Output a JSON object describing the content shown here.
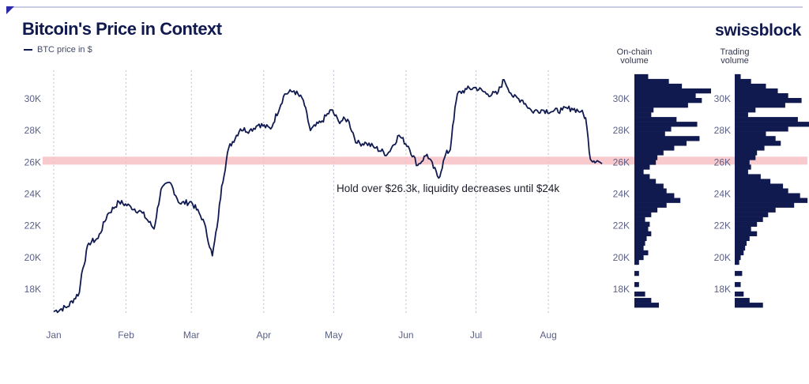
{
  "title": "Bitcoin's Price in Context",
  "brand": "swissblock",
  "legend_label": "BTC price in $",
  "colors": {
    "primary": "#101a4f",
    "band": "#f7c1c4",
    "grid": "#b9bccc"
  },
  "chart_data": {
    "type": "line",
    "series": [
      {
        "name": "BTC price in $",
        "x": [
          "2023-01-01",
          "2023-01-07",
          "2023-01-12",
          "2023-01-13",
          "2023-01-16",
          "2023-01-20",
          "2023-01-24",
          "2023-01-29",
          "2023-02-03",
          "2023-02-08",
          "2023-02-13",
          "2023-02-16",
          "2023-02-20",
          "2023-02-24",
          "2023-03-01",
          "2023-03-06",
          "2023-03-10",
          "2023-03-12",
          "2023-03-14",
          "2023-03-17",
          "2023-03-22",
          "2023-03-26",
          "2023-03-30",
          "2023-04-04",
          "2023-04-10",
          "2023-04-14",
          "2023-04-18",
          "2023-04-21",
          "2023-04-26",
          "2023-04-30",
          "2023-05-03",
          "2023-05-07",
          "2023-05-11",
          "2023-05-15",
          "2023-05-19",
          "2023-05-24",
          "2023-05-29",
          "2023-06-02",
          "2023-06-06",
          "2023-06-10",
          "2023-06-15",
          "2023-06-18",
          "2023-06-20",
          "2023-06-21",
          "2023-06-23",
          "2023-06-27",
          "2023-07-01",
          "2023-07-06",
          "2023-07-10",
          "2023-07-13",
          "2023-07-17",
          "2023-07-21",
          "2023-07-25",
          "2023-07-29",
          "2023-08-03",
          "2023-08-07",
          "2023-08-11",
          "2023-08-15",
          "2023-08-17",
          "2023-08-19",
          "2023-08-22",
          "2023-08-24"
        ],
        "y": [
          16600,
          16900,
          17800,
          19000,
          20900,
          21200,
          22700,
          23500,
          23200,
          22800,
          21800,
          24300,
          24700,
          23400,
          23500,
          22400,
          20100,
          21900,
          24500,
          26900,
          28100,
          28000,
          28400,
          28100,
          30300,
          30500,
          29900,
          28000,
          28600,
          29300,
          28600,
          28700,
          27200,
          27200,
          26900,
          26500,
          27700,
          27000,
          25800,
          26500,
          25000,
          26500,
          26800,
          28300,
          30300,
          30600,
          30700,
          30300,
          30300,
          31200,
          30100,
          29900,
          29200,
          29300,
          29200,
          29300,
          29400,
          29200,
          28800,
          26200,
          26100,
          25900
        ]
      }
    ],
    "xlabels": [
      "Jan",
      "Feb",
      "Mar",
      "Apr",
      "May",
      "Jun",
      "Jul",
      "Aug"
    ],
    "ylim": [
      16500,
      31800
    ],
    "yticks": [
      "18K",
      "20K",
      "22K",
      "24K",
      "26K",
      "28K",
      "30K"
    ],
    "ytick_values": [
      18000,
      20000,
      22000,
      24000,
      26000,
      28000,
      30000
    ],
    "highlight_band": [
      25850,
      26350
    ],
    "annotation": "Hold over $26.3k, liquidity decreases until $24k",
    "onchain_volume": {
      "title": [
        "On-chain",
        "volume"
      ],
      "bins": [
        {
          "price": 31400,
          "value": 0.18
        },
        {
          "price": 31100,
          "value": 0.45
        },
        {
          "price": 30800,
          "value": 0.62
        },
        {
          "price": 30500,
          "value": 1.0
        },
        {
          "price": 30200,
          "value": 0.8
        },
        {
          "price": 29900,
          "value": 0.88
        },
        {
          "price": 29600,
          "value": 0.7
        },
        {
          "price": 29300,
          "value": 0.25
        },
        {
          "price": 29000,
          "value": 0.22
        },
        {
          "price": 28700,
          "value": 0.55
        },
        {
          "price": 28400,
          "value": 0.82
        },
        {
          "price": 28100,
          "value": 0.48
        },
        {
          "price": 27800,
          "value": 0.4
        },
        {
          "price": 27500,
          "value": 0.85
        },
        {
          "price": 27200,
          "value": 0.68
        },
        {
          "price": 26900,
          "value": 0.52
        },
        {
          "price": 26600,
          "value": 0.38
        },
        {
          "price": 26300,
          "value": 0.3
        },
        {
          "price": 26000,
          "value": 0.28
        },
        {
          "price": 25700,
          "value": 0.2
        },
        {
          "price": 25400,
          "value": 0.12
        },
        {
          "price": 25100,
          "value": 0.2
        },
        {
          "price": 24800,
          "value": 0.28
        },
        {
          "price": 24500,
          "value": 0.38
        },
        {
          "price": 24200,
          "value": 0.42
        },
        {
          "price": 23900,
          "value": 0.52
        },
        {
          "price": 23600,
          "value": 0.6
        },
        {
          "price": 23300,
          "value": 0.42
        },
        {
          "price": 23000,
          "value": 0.3
        },
        {
          "price": 22700,
          "value": 0.22
        },
        {
          "price": 22400,
          "value": 0.14
        },
        {
          "price": 22100,
          "value": 0.2
        },
        {
          "price": 21800,
          "value": 0.18
        },
        {
          "price": 21500,
          "value": 0.22
        },
        {
          "price": 21200,
          "value": 0.16
        },
        {
          "price": 20900,
          "value": 0.14
        },
        {
          "price": 20600,
          "value": 0.12
        },
        {
          "price": 20300,
          "value": 0.18
        },
        {
          "price": 20000,
          "value": 0.12
        },
        {
          "price": 19700,
          "value": 0.06
        },
        {
          "price": 19000,
          "value": 0.06
        },
        {
          "price": 18300,
          "value": 0.06
        },
        {
          "price": 17700,
          "value": 0.14
        },
        {
          "price": 17300,
          "value": 0.22
        },
        {
          "price": 17000,
          "value": 0.32
        }
      ]
    },
    "trading_volume": {
      "title": [
        "Trading",
        "volume"
      ],
      "bins": [
        {
          "price": 31400,
          "value": 0.08
        },
        {
          "price": 31100,
          "value": 0.22
        },
        {
          "price": 30800,
          "value": 0.42
        },
        {
          "price": 30500,
          "value": 0.58
        },
        {
          "price": 30200,
          "value": 0.72
        },
        {
          "price": 29900,
          "value": 0.9
        },
        {
          "price": 29600,
          "value": 0.68
        },
        {
          "price": 29300,
          "value": 0.28
        },
        {
          "price": 29000,
          "value": 0.18
        },
        {
          "price": 28700,
          "value": 0.85
        },
        {
          "price": 28400,
          "value": 1.0
        },
        {
          "price": 28100,
          "value": 0.72
        },
        {
          "price": 27800,
          "value": 0.42
        },
        {
          "price": 27500,
          "value": 0.55
        },
        {
          "price": 27200,
          "value": 0.62
        },
        {
          "price": 26900,
          "value": 0.4
        },
        {
          "price": 26600,
          "value": 0.3
        },
        {
          "price": 26300,
          "value": 0.28
        },
        {
          "price": 26000,
          "value": 0.2
        },
        {
          "price": 25700,
          "value": 0.22
        },
        {
          "price": 25400,
          "value": 0.18
        },
        {
          "price": 25100,
          "value": 0.35
        },
        {
          "price": 24800,
          "value": 0.48
        },
        {
          "price": 24500,
          "value": 0.65
        },
        {
          "price": 24200,
          "value": 0.72
        },
        {
          "price": 23900,
          "value": 0.88
        },
        {
          "price": 23600,
          "value": 0.98
        },
        {
          "price": 23300,
          "value": 0.8
        },
        {
          "price": 23000,
          "value": 0.55
        },
        {
          "price": 22700,
          "value": 0.45
        },
        {
          "price": 22400,
          "value": 0.38
        },
        {
          "price": 22100,
          "value": 0.3
        },
        {
          "price": 21800,
          "value": 0.22
        },
        {
          "price": 21500,
          "value": 0.3
        },
        {
          "price": 21200,
          "value": 0.2
        },
        {
          "price": 20900,
          "value": 0.16
        },
        {
          "price": 20600,
          "value": 0.14
        },
        {
          "price": 20300,
          "value": 0.12
        },
        {
          "price": 20000,
          "value": 0.08
        },
        {
          "price": 19700,
          "value": 0.06
        },
        {
          "price": 19000,
          "value": 0.1
        },
        {
          "price": 18300,
          "value": 0.08
        },
        {
          "price": 17700,
          "value": 0.12
        },
        {
          "price": 17300,
          "value": 0.2
        },
        {
          "price": 17000,
          "value": 0.38
        }
      ]
    }
  }
}
